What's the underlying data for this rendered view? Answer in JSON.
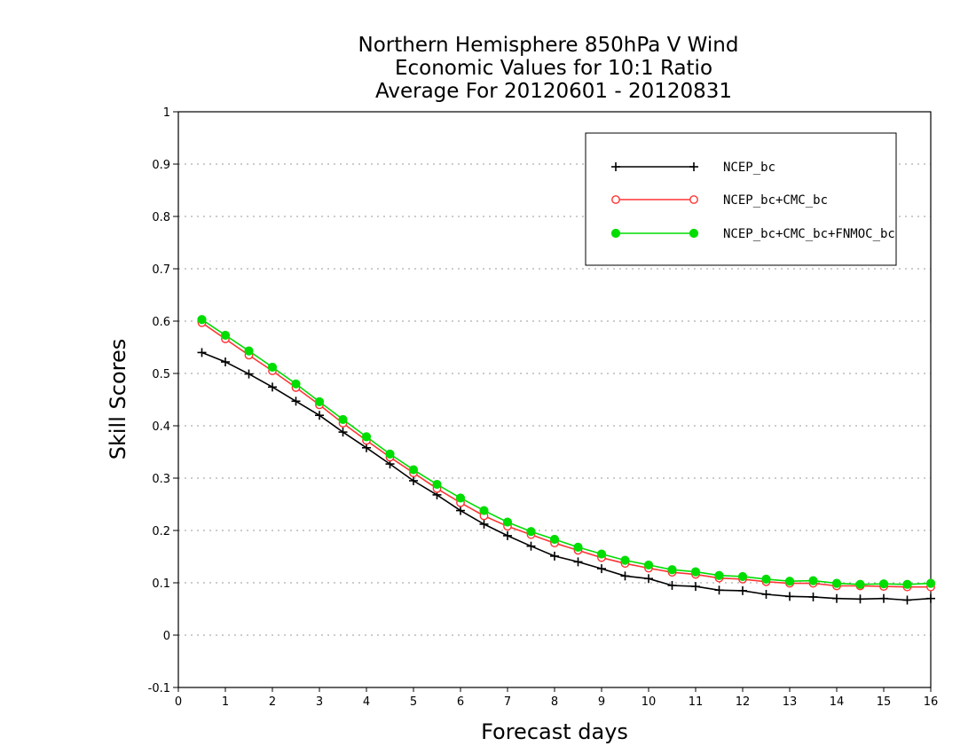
{
  "chart_data": {
    "type": "line",
    "title_lines": [
      "Northern Hemisphere 850hPa V Wind",
      "Economic Values for 10:1 Ratio",
      "Average For 20120601 - 20120831"
    ],
    "xlabel": "Forecast days",
    "ylabel": "Skill Scores",
    "xlim": [
      0,
      16
    ],
    "ylim": [
      -0.1,
      1
    ],
    "xticks": [
      "0",
      "1",
      "2",
      "3",
      "4",
      "5",
      "6",
      "7",
      "8",
      "9",
      "10",
      "11",
      "12",
      "13",
      "14",
      "15",
      "16"
    ],
    "yticks": [
      "-0.1",
      "0",
      "0.1",
      "0.2",
      "0.3",
      "0.4",
      "0.5",
      "0.6",
      "0.7",
      "0.8",
      "0.9",
      "1"
    ],
    "grid": "horizontal dotted",
    "legend_position": "top-right",
    "x": [
      0.5,
      1,
      1.5,
      2,
      2.5,
      3,
      3.5,
      4,
      4.5,
      5,
      5.5,
      6,
      6.5,
      7,
      7.5,
      8,
      8.5,
      9,
      9.5,
      10,
      10.5,
      11,
      11.5,
      12,
      12.5,
      13,
      13.5,
      14,
      14.5,
      15,
      15.5,
      16
    ],
    "series": [
      {
        "name": "NCEP_bc",
        "color": "#000000",
        "marker": "plus",
        "values": [
          0.54,
          0.522,
          0.499,
          0.474,
          0.447,
          0.42,
          0.388,
          0.358,
          0.327,
          0.295,
          0.268,
          0.238,
          0.212,
          0.19,
          0.17,
          0.151,
          0.14,
          0.127,
          0.113,
          0.108,
          0.095,
          0.093,
          0.086,
          0.085,
          0.078,
          0.074,
          0.073,
          0.07,
          0.069,
          0.07,
          0.067,
          0.07
        ]
      },
      {
        "name": "NCEP_bc+CMC_bc",
        "color": "#ff3333",
        "marker": "open-circle",
        "values": [
          0.597,
          0.566,
          0.535,
          0.505,
          0.473,
          0.44,
          0.405,
          0.372,
          0.34,
          0.31,
          0.28,
          0.253,
          0.228,
          0.208,
          0.192,
          0.176,
          0.162,
          0.148,
          0.137,
          0.128,
          0.12,
          0.116,
          0.109,
          0.107,
          0.102,
          0.099,
          0.099,
          0.094,
          0.094,
          0.093,
          0.092,
          0.092
        ]
      },
      {
        "name": "NCEP_bc+CMC_bc+FNMOC_bc",
        "color": "#00dd00",
        "marker": "filled-circle",
        "values": [
          0.603,
          0.573,
          0.543,
          0.512,
          0.48,
          0.446,
          0.412,
          0.379,
          0.346,
          0.316,
          0.288,
          0.262,
          0.238,
          0.216,
          0.198,
          0.183,
          0.168,
          0.155,
          0.143,
          0.134,
          0.125,
          0.121,
          0.114,
          0.112,
          0.107,
          0.103,
          0.104,
          0.099,
          0.097,
          0.098,
          0.097,
          0.099
        ]
      }
    ]
  }
}
